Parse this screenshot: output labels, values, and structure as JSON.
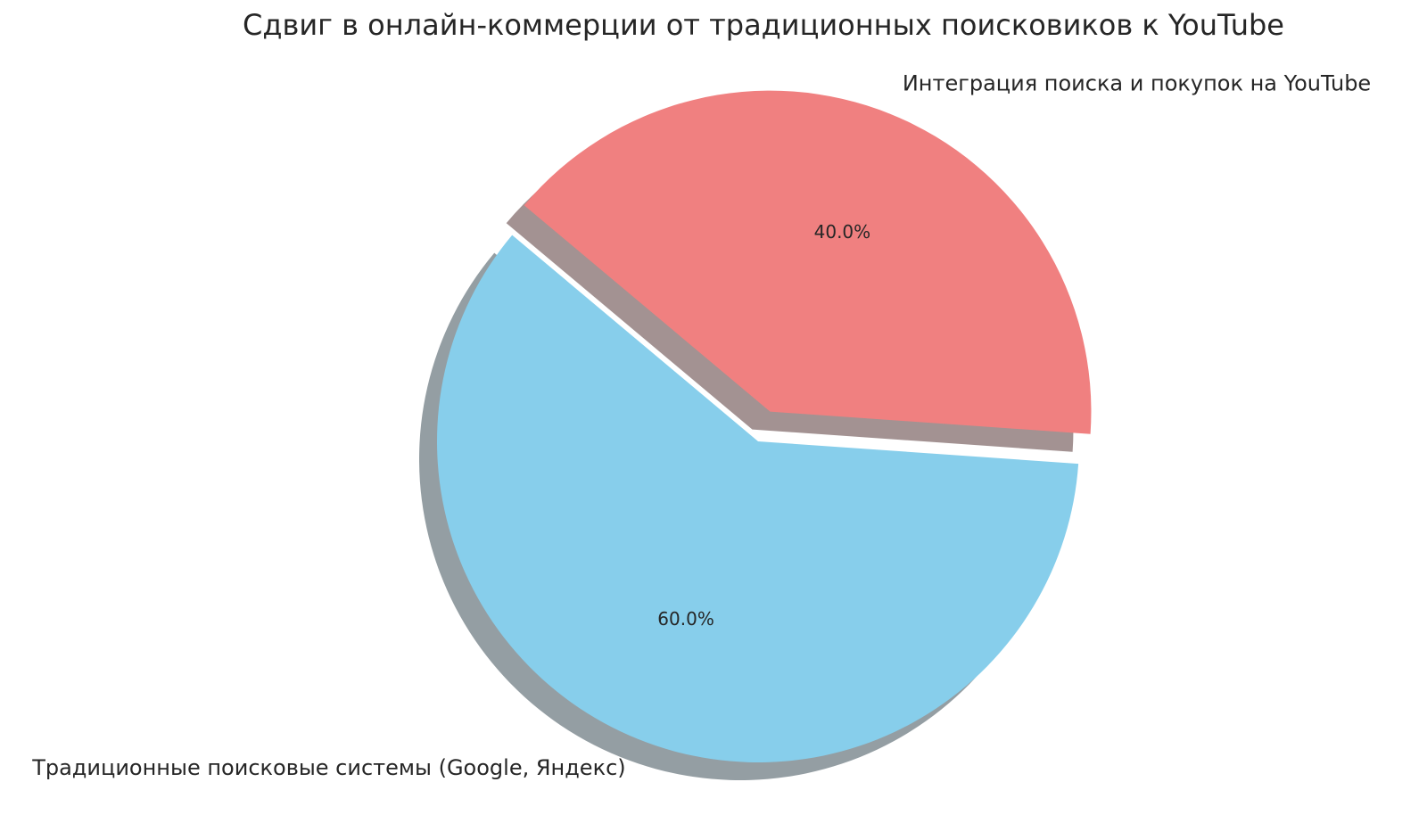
{
  "chart_data": {
    "type": "pie",
    "title": "Сдвиг в онлайн-коммерции от традиционных поисковиков к YouTube",
    "categories": [
      "Традиционные поисковые системы (Google, Яндекс)",
      "Интеграция поиска и покупок на YouTube"
    ],
    "values": [
      60,
      40
    ],
    "value_labels": [
      "60.0%",
      "40.0%"
    ],
    "colors": [
      "#87ceeb",
      "#f08080"
    ],
    "shadow": true
  }
}
